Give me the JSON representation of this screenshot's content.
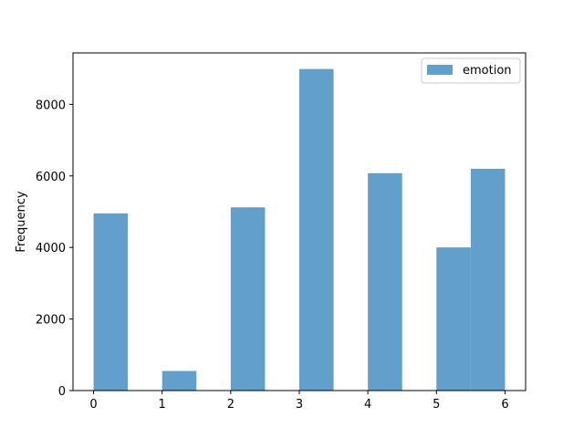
{
  "chart_data": {
    "type": "bar",
    "subtype": "histogram",
    "bin_edges": [
      0,
      0.5,
      1,
      1.5,
      2,
      2.5,
      3,
      3.5,
      4,
      4.5,
      5,
      5.5,
      6
    ],
    "values": [
      4953,
      0,
      547,
      0,
      5121,
      0,
      8989,
      0,
      6077,
      0,
      4002,
      6198
    ],
    "xticks": [
      "0",
      "1",
      "2",
      "3",
      "4",
      "5",
      "6"
    ],
    "xtick_values": [
      0,
      1,
      2,
      3,
      4,
      5,
      6
    ],
    "yticks": [
      "0",
      "2000",
      "4000",
      "6000",
      "8000"
    ],
    "ytick_values": [
      0,
      2000,
      4000,
      6000,
      8000
    ],
    "xlabel": "",
    "ylabel": "Frequency",
    "xlim": [
      -0.3,
      6.3
    ],
    "ylim": [
      0,
      9438
    ],
    "legend": {
      "position": "top-right",
      "entries": [
        "emotion"
      ]
    },
    "series": [
      {
        "name": "emotion",
        "color": "#639fcb"
      }
    ],
    "grid": false
  }
}
